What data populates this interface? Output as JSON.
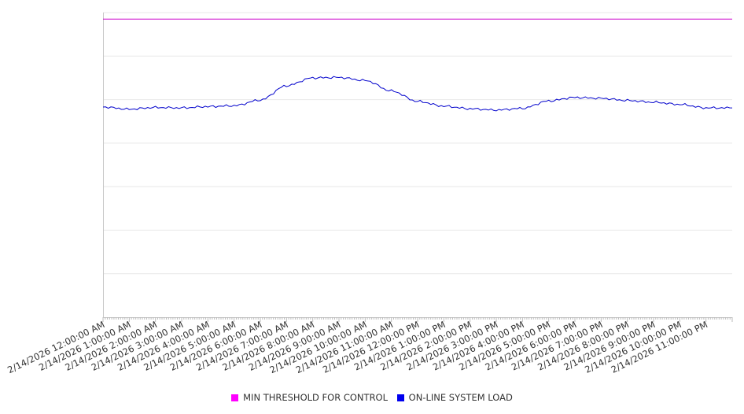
{
  "chart_data": {
    "type": "line",
    "title": "",
    "xlabel": "",
    "ylabel": "",
    "grid": true,
    "legend_position": "bottom",
    "categories": [
      "2/14/2026 12:00:00 AM",
      "2/14/2026 1:00:00 AM",
      "2/14/2026 2:00:00 AM",
      "2/14/2026 3:00:00 AM",
      "2/14/2026 4:00:00 AM",
      "2/14/2026 5:00:00 AM",
      "2/14/2026 6:00:00 AM",
      "2/14/2026 7:00:00 AM",
      "2/14/2026 8:00:00 AM",
      "2/14/2026 9:00:00 AM",
      "2/14/2026 10:00:00 AM",
      "2/14/2026 11:00:00 AM",
      "2/14/2026 12:00:00 PM",
      "2/14/2026 1:00:00 PM",
      "2/14/2026 2:00:00 PM",
      "2/14/2026 3:00:00 PM",
      "2/14/2026 4:00:00 PM",
      "2/14/2026 5:00:00 PM",
      "2/14/2026 6:00:00 PM",
      "2/14/2026 7:00:00 PM",
      "2/14/2026 8:00:00 PM",
      "2/14/2026 9:00:00 PM",
      "2/14/2026 10:00:00 PM",
      "2/14/2026 11:00:00 PM"
    ],
    "ylim": [
      0,
      7
    ],
    "series": [
      {
        "name": "MIN THRESHOLD FOR CONTROL",
        "color": "#cc00cc",
        "values": [
          6.85,
          6.85,
          6.85,
          6.85,
          6.85,
          6.85,
          6.85,
          6.85,
          6.85,
          6.85,
          6.85,
          6.85,
          6.85,
          6.85,
          6.85,
          6.85,
          6.85,
          6.85,
          6.85,
          6.85,
          6.85,
          6.85,
          6.85,
          6.85
        ]
      },
      {
        "name": "ON-LINE SYSTEM LOAD",
        "color": "#0000cc",
        "values": [
          4.83,
          4.78,
          4.82,
          4.81,
          4.84,
          4.86,
          4.99,
          5.32,
          5.5,
          5.51,
          5.44,
          5.2,
          4.96,
          4.85,
          4.79,
          4.76,
          4.8,
          4.97,
          5.05,
          5.03,
          4.98,
          4.94,
          4.89,
          4.81
        ]
      }
    ]
  },
  "legend": {
    "items": [
      {
        "label": "MIN THRESHOLD FOR CONTROL",
        "color": "#ff00ff"
      },
      {
        "label": "ON-LINE SYSTEM LOAD",
        "color": "#0000ee"
      }
    ]
  }
}
